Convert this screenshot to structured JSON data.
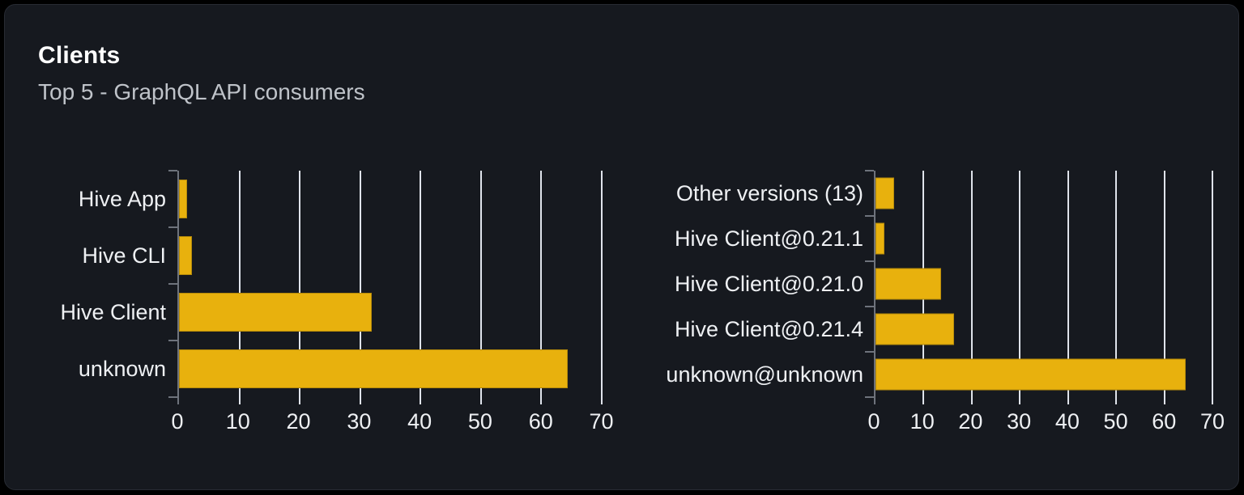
{
  "card": {
    "title": "Clients",
    "subtitle": "Top 5 - GraphQL API consumers"
  },
  "colors": {
    "page_bg": "#000000",
    "card_bg": "#16191f",
    "card_border": "#272b33",
    "bar": "#e8b10d",
    "gridline": "#dfe3eb",
    "axis": "#6e737c",
    "label_text": "#eef0f3",
    "title_text": "#ffffff",
    "subtitle_text": "#bfc3c9"
  },
  "chart_data": [
    {
      "type": "bar",
      "orientation": "horizontal",
      "categories": [
        "Hive App",
        "Hive CLI",
        "Hive Client",
        "unknown"
      ],
      "values": [
        1.4,
        2.2,
        31.9,
        64.4
      ],
      "xlim": [
        0,
        71
      ],
      "xticks": [
        0,
        10,
        20,
        30,
        40,
        50,
        60,
        70
      ],
      "grid": true,
      "legend": "none",
      "bar_color": "#e8b10d"
    },
    {
      "type": "bar",
      "orientation": "horizontal",
      "categories": [
        "Other versions (13)",
        "Hive Client@0.21.1",
        "Hive Client@0.21.0",
        "Hive Client@0.21.4",
        "unknown@unknown"
      ],
      "values": [
        3.8,
        1.8,
        13.7,
        16.3,
        64.4
      ],
      "xlim": [
        0,
        71
      ],
      "xticks": [
        0,
        10,
        20,
        30,
        40,
        50,
        60,
        70
      ],
      "grid": true,
      "legend": "none",
      "bar_color": "#e8b10d"
    }
  ]
}
